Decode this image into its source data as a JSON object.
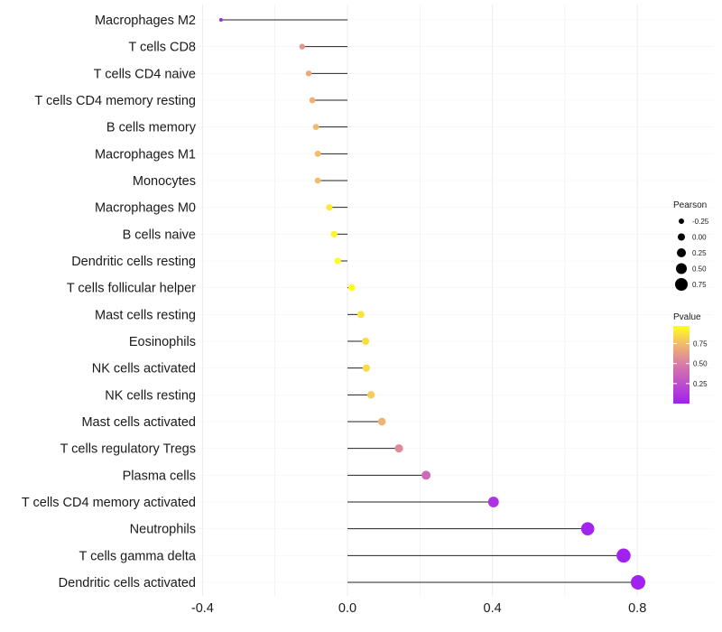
{
  "chart_data": {
    "type": "lollipop",
    "title": "",
    "xlabel": "",
    "ylabel": "",
    "xlim": [
      -0.42,
      0.84
    ],
    "xticks": [
      -0.4,
      0.0,
      0.4,
      0.8
    ],
    "xtick_labels": [
      "-0.4",
      "0.0",
      "0.4",
      "0.8"
    ],
    "grid": true,
    "categories": [
      "Macrophages M2",
      "T cells CD8",
      "T cells CD4 naive",
      "T cells CD4 memory resting",
      "B cells memory",
      "Macrophages M1",
      "Monocytes",
      "Macrophages M0",
      "B cells naive",
      "Dendritic cells resting",
      "T cells follicular helper",
      "Mast cells resting",
      "Eosinophils",
      "NK cells activated",
      "NK cells resting",
      "Mast cells activated",
      "T cells regulatory  Tregs",
      "Plasma cells",
      "T cells CD4 memory activated",
      "Neutrophils",
      "T cells gamma delta",
      "Dendritic cells activated"
    ],
    "pearson": [
      -0.349,
      -0.125,
      -0.107,
      -0.097,
      -0.087,
      -0.082,
      -0.082,
      -0.05,
      -0.037,
      -0.027,
      0.012,
      0.037,
      0.05,
      0.052,
      0.065,
      0.095,
      0.142,
      0.217,
      0.403,
      0.663,
      0.762,
      0.802
    ],
    "pvalue": [
      0.05,
      0.6,
      0.68,
      0.7,
      0.74,
      0.75,
      0.75,
      0.9,
      0.93,
      0.95,
      0.97,
      0.88,
      0.86,
      0.85,
      0.8,
      0.72,
      0.55,
      0.4,
      0.1,
      0.02,
      0.01,
      0.005
    ],
    "legend": {
      "placement": "right",
      "size_title": "Pearson",
      "size_values": [
        -0.25,
        0.0,
        0.25,
        0.5,
        0.75
      ],
      "size_labels": [
        "-0.25",
        "0.00",
        "0.25",
        "0.50",
        "0.75"
      ],
      "color_title": "Pvalue",
      "color_ticks": [
        0.25,
        0.5,
        0.75
      ],
      "color_labels": [
        "0.25",
        "0.50",
        "0.75"
      ],
      "color_range": [
        0,
        0.97
      ]
    },
    "colors": {
      "low": "#a020f0",
      "mid": "#d87aa8",
      "high_mid": "#f2b56f",
      "high": "#ffff20"
    }
  }
}
